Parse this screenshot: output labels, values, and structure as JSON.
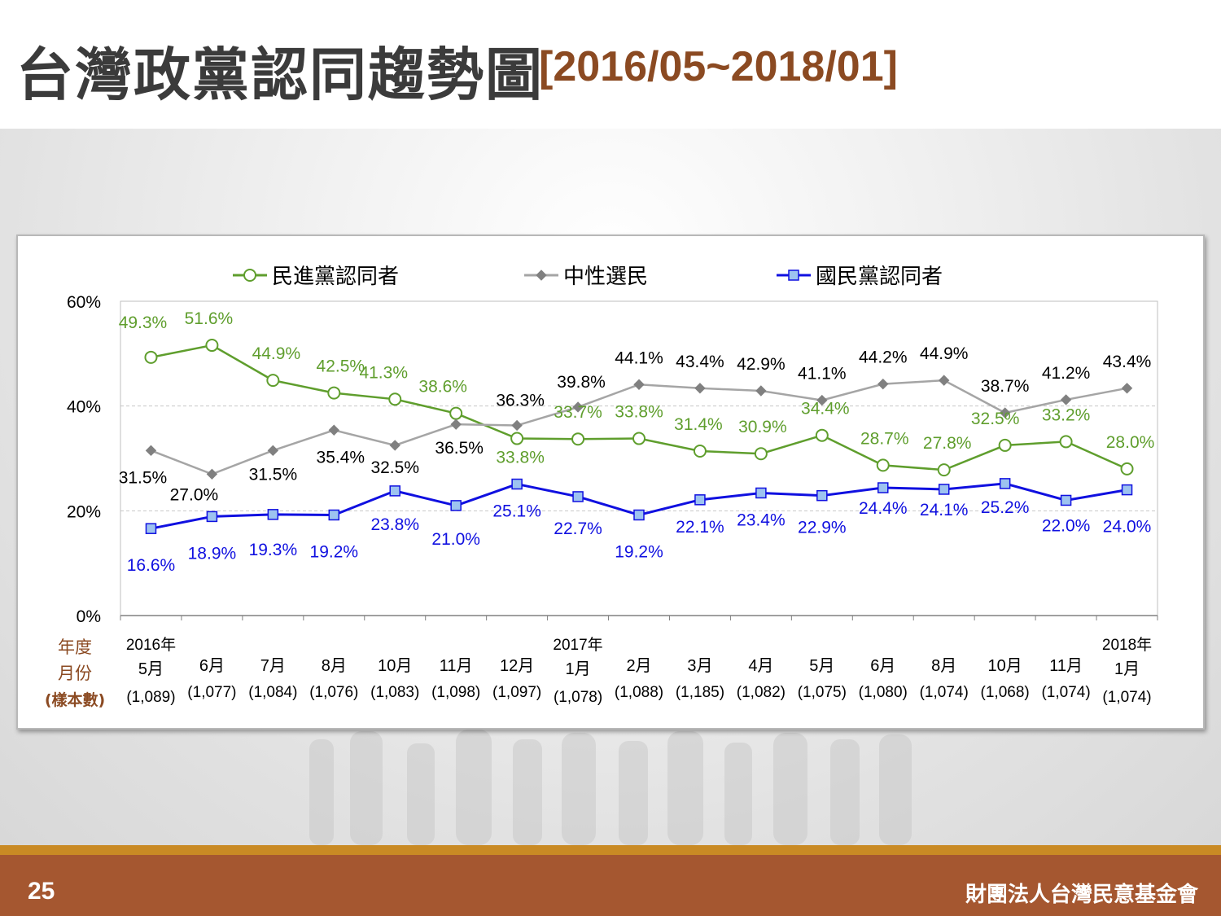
{
  "slide": {
    "title": "台灣政黨認同趨勢圖",
    "date_range": "[2016/05~2018/01]",
    "page_number": "25",
    "organization": "財團法人台灣民意基金會"
  },
  "colors": {
    "dpp": "#5f9e2d",
    "neutral": "#a5a5a5",
    "kmt": "#1010e0",
    "row_header": "#8b4a22",
    "footer": "#a55730"
  },
  "chart_data": {
    "type": "line",
    "ylim": [
      0,
      60
    ],
    "yticks": [
      "0%",
      "20%",
      "40%",
      "60%"
    ],
    "y_tick_values": [
      0,
      20,
      40,
      60
    ],
    "grid": true,
    "legend_position": "top",
    "row_header": [
      "年度",
      "月份",
      "(樣本數)"
    ],
    "categories": [
      {
        "year": "2016年",
        "month": "5月",
        "n": "(1,089)"
      },
      {
        "year": "",
        "month": "6月",
        "n": "(1,077)"
      },
      {
        "year": "",
        "month": "7月",
        "n": "(1,084)"
      },
      {
        "year": "",
        "month": "8月",
        "n": "(1,076)"
      },
      {
        "year": "",
        "month": "10月",
        "n": "(1,083)"
      },
      {
        "year": "",
        "month": "11月",
        "n": "(1,098)"
      },
      {
        "year": "",
        "month": "12月",
        "n": "(1,097)"
      },
      {
        "year": "2017年",
        "month": "1月",
        "n": "(1,078)"
      },
      {
        "year": "",
        "month": "2月",
        "n": "(1,088)"
      },
      {
        "year": "",
        "month": "3月",
        "n": "(1,185)"
      },
      {
        "year": "",
        "month": "4月",
        "n": "(1,082)"
      },
      {
        "year": "",
        "month": "5月",
        "n": "(1,075)"
      },
      {
        "year": "",
        "month": "6月",
        "n": "(1,080)"
      },
      {
        "year": "",
        "month": "8月",
        "n": "(1,074)"
      },
      {
        "year": "",
        "month": "10月",
        "n": "(1,068)"
      },
      {
        "year": "",
        "month": "11月",
        "n": "(1,074)"
      },
      {
        "year": "2018年",
        "month": "1月",
        "n": "(1,074)"
      }
    ],
    "series": [
      {
        "name": "民進黨認同者",
        "marker": "circle",
        "values": [
          49.3,
          51.6,
          44.9,
          42.5,
          41.3,
          38.6,
          33.8,
          33.7,
          33.8,
          31.4,
          30.9,
          34.4,
          28.7,
          27.8,
          32.5,
          33.2,
          28.0
        ],
        "labels": [
          "49.3%",
          "51.6%",
          "44.9%",
          "42.5%",
          "41.3%",
          "38.6%",
          "33.8%",
          "33.7%",
          "33.8%",
          "31.4%",
          "30.9%",
          "34.4%",
          "28.7%",
          "27.8%",
          "32.5%",
          "33.2%",
          "28.0%"
        ]
      },
      {
        "name": "中性選民",
        "marker": "diamond",
        "values": [
          31.5,
          27.0,
          31.5,
          35.4,
          32.5,
          36.5,
          36.3,
          39.8,
          44.1,
          43.4,
          42.9,
          41.1,
          44.2,
          44.9,
          38.7,
          41.2,
          43.4
        ],
        "labels": [
          "31.5%",
          "27.0%",
          "31.5%",
          "35.4%",
          "32.5%",
          "36.5%",
          "36.3%",
          "39.8%",
          "44.1%",
          "43.4%",
          "42.9%",
          "41.1%",
          "44.2%",
          "44.9%",
          "38.7%",
          "41.2%",
          "43.4%"
        ]
      },
      {
        "name": "國民黨認同者",
        "marker": "square",
        "values": [
          16.6,
          18.9,
          19.3,
          19.2,
          23.8,
          21.0,
          25.1,
          22.7,
          19.2,
          22.1,
          23.4,
          22.9,
          24.4,
          24.1,
          25.2,
          22.0,
          24.0
        ],
        "labels": [
          "16.6%",
          "18.9%",
          "19.3%",
          "19.2%",
          "23.8%",
          "21.0%",
          "25.1%",
          "22.7%",
          "19.2%",
          "22.1%",
          "23.4%",
          "22.9%",
          "24.4%",
          "24.1%",
          "25.2%",
          "22.0%",
          "24.0%"
        ]
      }
    ]
  }
}
